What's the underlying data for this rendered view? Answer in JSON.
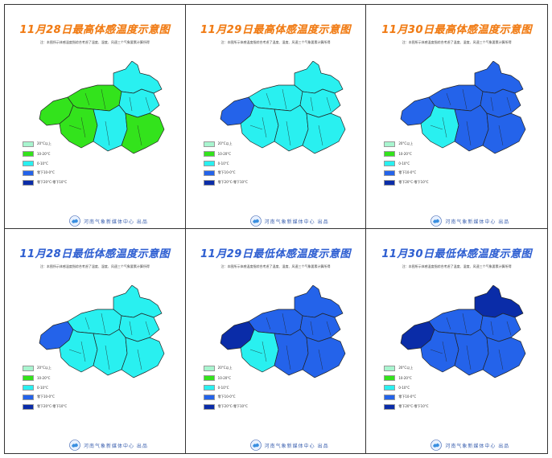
{
  "colors": {
    "above20": "#a8f5cf",
    "c10_20": "#33e31c",
    "c0_10": "#29f0f0",
    "below0_10": "#2463ea",
    "below10_20": "#0a2ca8",
    "border": "#222222",
    "title_max": "#f07a14",
    "title_min": "#2f5fd0"
  },
  "legend": [
    {
      "label": "20°C以上",
      "color": "#a8f5cf"
    },
    {
      "label": "10-20°C",
      "color": "#33e31c"
    },
    {
      "label": "0-10°C",
      "color": "#29f0f0"
    },
    {
      "label": "零下10-0°C",
      "color": "#2463ea"
    },
    {
      "label": "零下20°C-零下10°C",
      "color": "#0a2ca8"
    }
  ],
  "footer": "河南气象新媒体中心 出品",
  "note": "注：本图所示体感温度指综合考虑了温度、湿度、风速三个气象要素计算所得",
  "panels": [
    {
      "title": "11月28日最高体感温度示意图",
      "kind": "max",
      "fills": [
        "#29f0f0",
        "#33e31c",
        "#33e31c",
        "#29f0f0",
        "#33e31c",
        "#29f0f0",
        "#33e31c"
      ]
    },
    {
      "title": "11月29日最高体感温度示意图",
      "kind": "max",
      "fills": [
        "#29f0f0",
        "#2463ea",
        "#29f0f0",
        "#29f0f0",
        "#29f0f0",
        "#29f0f0",
        "#29f0f0"
      ]
    },
    {
      "title": "11月30日最高体感温度示意图",
      "kind": "max",
      "fills": [
        "#2463ea",
        "#2463ea",
        "#2463ea",
        "#2463ea",
        "#29f0f0",
        "#2463ea",
        "#2463ea"
      ]
    },
    {
      "title": "11月28日最低体感温度示意图",
      "kind": "min",
      "fills": [
        "#29f0f0",
        "#2463ea",
        "#29f0f0",
        "#29f0f0",
        "#29f0f0",
        "#29f0f0",
        "#29f0f0"
      ]
    },
    {
      "title": "11月29日最低体感温度示意图",
      "kind": "min",
      "fills": [
        "#2463ea",
        "#0a2ca8",
        "#2463ea",
        "#2463ea",
        "#29f0f0",
        "#2463ea",
        "#2463ea"
      ]
    },
    {
      "title": "11月30日最低体感温度示意图",
      "kind": "min",
      "fills": [
        "#0a2ca8",
        "#0a2ca8",
        "#2463ea",
        "#2463ea",
        "#2463ea",
        "#2463ea",
        "#2463ea"
      ]
    }
  ]
}
